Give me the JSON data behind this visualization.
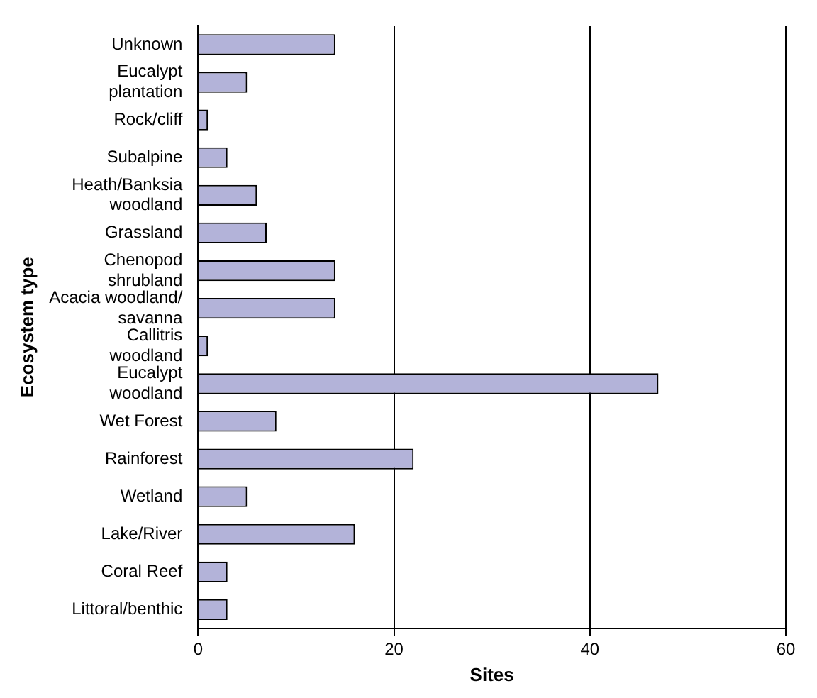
{
  "chart_data": {
    "type": "bar",
    "orientation": "horizontal",
    "xlabel": "Sites",
    "ylabel": "Ecosystem type",
    "categories": [
      "Unknown",
      "Eucalypt plantation",
      "Rock/cliff",
      "Subalpine",
      "Heath/Banksia woodland",
      "Grassland",
      "Chenopod shrubland",
      "Acacia woodland/ savanna",
      "Callitris woodland",
      "Eucalypt woodland",
      "Wet Forest",
      "Rainforest",
      "Wetland",
      "Lake/River",
      "Coral Reef",
      "Littoral/benthic"
    ],
    "values": [
      14,
      5,
      1,
      3,
      6,
      7,
      14,
      14,
      1,
      47,
      8,
      22,
      5,
      16,
      3,
      3
    ],
    "color": "#b3b3d9",
    "xlim": [
      0,
      60
    ],
    "xticks": [
      0,
      20,
      40,
      60
    ],
    "grid": "x"
  }
}
